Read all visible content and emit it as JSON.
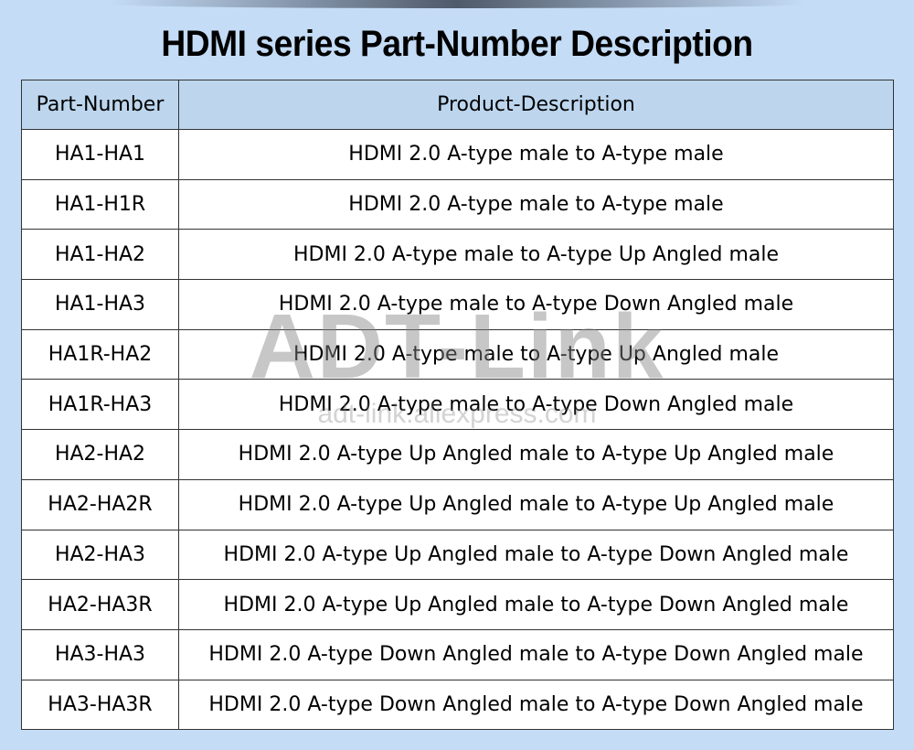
{
  "title": "HDMI series Part-Number Description",
  "table": {
    "headers": [
      "Part-Number",
      "Product-Description"
    ],
    "rows": [
      [
        "HA1-HA1",
        "HDMI 2.0 A-type male to A-type male"
      ],
      [
        "HA1-H1R",
        "HDMI 2.0 A-type male to A-type male"
      ],
      [
        "HA1-HA2",
        "HDMI 2.0 A-type male to A-type Up Angled male"
      ],
      [
        "HA1-HA3",
        "HDMI 2.0 A-type male to A-type Down Angled male"
      ],
      [
        "HA1R-HA2",
        "HDMI 2.0 A-type male to A-type Up Angled male"
      ],
      [
        "HA1R-HA3",
        "HDMI 2.0 A-type male to A-type Down Angled male"
      ],
      [
        "HA2-HA2",
        "HDMI 2.0 A-type Up Angled male to A-type Up Angled male"
      ],
      [
        "HA2-HA2R",
        "HDMI 2.0 A-type Up Angled male to A-type Up Angled male"
      ],
      [
        "HA2-HA3",
        "HDMI 2.0 A-type Up Angled male to A-type Down Angled male"
      ],
      [
        "HA2-HA3R",
        "HDMI 2.0 A-type Up Angled male to A-type Down Angled male"
      ],
      [
        "HA3-HA3",
        "HDMI 2.0 A-type Down Angled male to A-type Down Angled male"
      ],
      [
        "HA3-HA3R",
        "HDMI 2.0 A-type Down Angled male to A-type Down Angled male"
      ]
    ]
  },
  "watermark": {
    "brand": "ADT-Link",
    "url": "adt-link.aliexpress.com"
  },
  "colors": {
    "background": "#c4dcf6",
    "header": "#bdd6ee"
  }
}
